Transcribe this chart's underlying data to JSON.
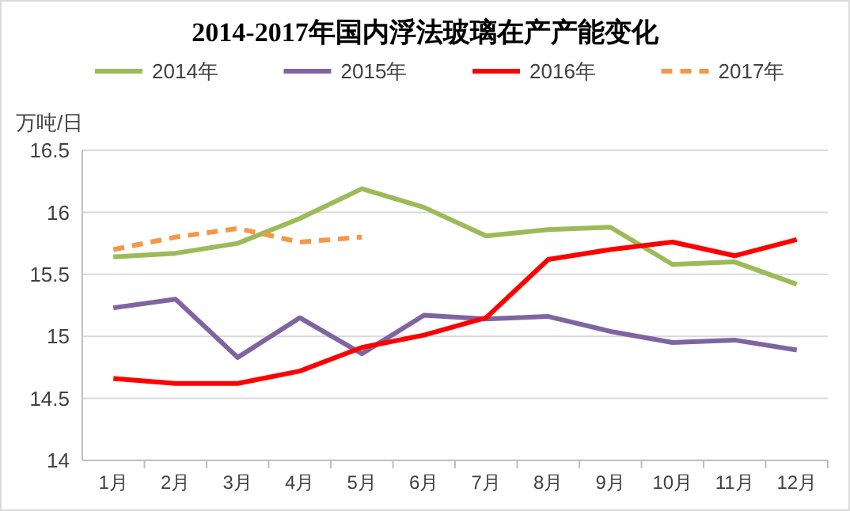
{
  "chart_data": {
    "type": "line",
    "title": "2014-2017年国内浮法玻璃在产产能变化",
    "ylabel": "万吨/日",
    "categories": [
      "1月",
      "2月",
      "3月",
      "4月",
      "5月",
      "6月",
      "7月",
      "8月",
      "9月",
      "10月",
      "11月",
      "12月"
    ],
    "series": [
      {
        "name": "2014年",
        "color": "#9bbb59",
        "values": [
          15.64,
          15.67,
          15.75,
          15.95,
          16.19,
          16.04,
          15.81,
          15.86,
          15.88,
          15.58,
          15.6,
          15.42
        ]
      },
      {
        "name": "2015年",
        "color": "#8064a2",
        "values": [
          15.23,
          15.3,
          14.83,
          15.15,
          14.86,
          15.17,
          15.14,
          15.16,
          15.04,
          14.95,
          14.97,
          14.89
        ]
      },
      {
        "name": "2016年",
        "color": "#ff0000",
        "values": [
          14.66,
          14.62,
          14.62,
          14.72,
          14.91,
          15.01,
          15.15,
          15.62,
          15.7,
          15.76,
          15.65,
          15.78
        ]
      },
      {
        "name": "2017年",
        "color": "#f79646",
        "line_style": "dashed",
        "values": [
          15.7,
          15.8,
          15.87,
          15.76,
          15.8,
          null,
          null,
          null,
          null,
          null,
          null,
          null
        ]
      }
    ],
    "ylim": [
      14,
      16.5
    ],
    "yticks": [
      14,
      14.5,
      15,
      15.5,
      16,
      16.5
    ],
    "grid": "y",
    "legend": "top",
    "marker": "none"
  }
}
